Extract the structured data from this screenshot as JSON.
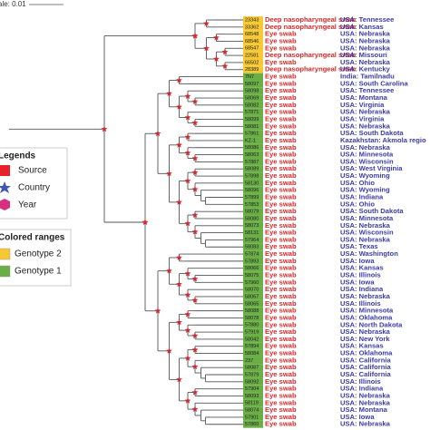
{
  "scale": "ale: 0.01",
  "legend": {
    "title": "Legends",
    "items": [
      "Source",
      "Country",
      "Year"
    ]
  },
  "colored_ranges": {
    "title": "Colored ranges",
    "items": [
      {
        "label": "Genotype 2",
        "color": "#f6c834"
      },
      {
        "label": "Genotype 1",
        "color": "#6aae46"
      }
    ]
  },
  "leaves": [
    {
      "id": "23343",
      "source": "Deep nasopharyngeal swab",
      "country": "USA: Tennessee",
      "color": "#f6c834"
    },
    {
      "id": "33362",
      "source": "Deep nasopharyngeal swab",
      "country": "USA: Kansas",
      "color": "#f6c834"
    },
    {
      "id": "68548",
      "source": "Eye swab",
      "country": "USA: Nebraska",
      "color": "#f6c834"
    },
    {
      "id": "68546",
      "source": "Eye swab",
      "country": "USA: Nebraska",
      "color": "#f6c834"
    },
    {
      "id": "68547",
      "source": "Eye swab",
      "country": "USA: Nebraska",
      "color": "#f6c834"
    },
    {
      "id": "22581",
      "source": "Deep nasopharyngeal swab",
      "country": "USA: Missouri",
      "color": "#f6c834"
    },
    {
      "id": "66502",
      "source": "Eye swab",
      "country": "USA: Nebraska",
      "color": "#f6c834"
    },
    {
      "id": "28389",
      "source": "Deep nasopharyngeal swab",
      "country": "USA: Kentucky",
      "color": "#f6c834"
    },
    {
      "id": "7N7",
      "source": "Eye swab",
      "country": "India: Tamilnadu",
      "color": "#6aae46"
    },
    {
      "id": "58097",
      "source": "Eye swab",
      "country": "USA: South Carolina",
      "color": "#6aae46"
    },
    {
      "id": "58098",
      "source": "Eye swab",
      "country": "USA: Tennessee",
      "color": "#6aae46"
    },
    {
      "id": "58069",
      "source": "Eye swab",
      "country": "USA: Montana",
      "color": "#6aae46"
    },
    {
      "id": "58082",
      "source": "Eye swab",
      "country": "USA: Virginia",
      "color": "#6aae46"
    },
    {
      "id": "57871",
      "source": "Eye swab",
      "country": "USA: Nebraska",
      "color": "#6aae46"
    },
    {
      "id": "58099",
      "source": "Eye swab",
      "country": "USA: Virginia",
      "color": "#6aae46"
    },
    {
      "id": "58081",
      "source": "Eye swab",
      "country": "USA: Nebraska",
      "color": "#6aae46"
    },
    {
      "id": "57861",
      "source": "Eye swab",
      "country": "USA: South Dakota",
      "color": "#6aae46"
    },
    {
      "id": "KZ-1",
      "source": "Eye swab",
      "country": "Kazakhstan: Akmola regio",
      "color": "#6aae46"
    },
    {
      "id": "58086",
      "source": "Eye swab",
      "country": "USA: Nebraska",
      "color": "#6aae46"
    },
    {
      "id": "58063",
      "source": "Eye swab",
      "country": "USA: Minnesota",
      "color": "#6aae46"
    },
    {
      "id": "57887",
      "source": "Eye swab",
      "country": "USA: Wisconsin",
      "color": "#6aae46"
    },
    {
      "id": "58089",
      "source": "Eye swab",
      "country": "USA: West Virginia",
      "color": "#6aae46"
    },
    {
      "id": "57898",
      "source": "Eye swab",
      "country": "USA: Wyoming",
      "color": "#6aae46"
    },
    {
      "id": "58130",
      "source": "Eye swab",
      "country": "USA: Ohio",
      "color": "#6aae46"
    },
    {
      "id": "58096",
      "source": "Eye swab",
      "country": "USA: Wyoming",
      "color": "#6aae46"
    },
    {
      "id": "57899",
      "source": "Eye swab",
      "country": "USA: Indiana",
      "color": "#6aae46"
    },
    {
      "id": "57853",
      "source": "Eye swab",
      "country": "USA: Ohio",
      "color": "#6aae46"
    },
    {
      "id": "58079",
      "source": "Eye swab",
      "country": "USA: South Dakota",
      "color": "#6aae46"
    },
    {
      "id": "58080",
      "source": "Eye swab",
      "country": "USA: Minnesota",
      "color": "#6aae46"
    },
    {
      "id": "58073",
      "source": "Eye swab",
      "country": "USA: Nebraska",
      "color": "#6aae46"
    },
    {
      "id": "58131",
      "source": "Eye swab",
      "country": "USA: Wisconsin",
      "color": "#6aae46"
    },
    {
      "id": "57964",
      "source": "Eye swab",
      "country": "USA: Nebraska",
      "color": "#6aae46"
    },
    {
      "id": "58083",
      "source": "Eye swab",
      "country": "USA: Texas",
      "color": "#6aae46"
    },
    {
      "id": "57874",
      "source": "Eye swab",
      "country": "USA: Washington",
      "color": "#6aae46"
    },
    {
      "id": "57893",
      "source": "Eye swab",
      "country": "USA: Iowa",
      "color": "#6aae46"
    },
    {
      "id": "58066",
      "source": "Eye swab",
      "country": "USA: Kansas",
      "color": "#6aae46"
    },
    {
      "id": "58075",
      "source": "Eye swab",
      "country": "USA: Illinois",
      "color": "#6aae46"
    },
    {
      "id": "57960",
      "source": "Eye swab",
      "country": "USA: Iowa",
      "color": "#6aae46"
    },
    {
      "id": "58070",
      "source": "Eye swab",
      "country": "USA: Indiana",
      "color": "#6aae46"
    },
    {
      "id": "58067",
      "source": "Eye swab",
      "country": "USA: Nebraska",
      "color": "#6aae46"
    },
    {
      "id": "58065",
      "source": "Eye swab",
      "country": "USA: Illinois",
      "color": "#6aae46"
    },
    {
      "id": "58088",
      "source": "Eye swab",
      "country": "USA: Minnesota",
      "color": "#6aae46"
    },
    {
      "id": "58078",
      "source": "Eye swab",
      "country": "USA: Oklahoma",
      "color": "#6aae46"
    },
    {
      "id": "57880",
      "source": "Eye swab",
      "country": "USA: North Dakota",
      "color": "#6aae46"
    },
    {
      "id": "57919",
      "source": "Eye swab",
      "country": "USA: Nebraska",
      "color": "#6aae46"
    },
    {
      "id": "58042",
      "source": "Eye swab",
      "country": "USA: New York",
      "color": "#6aae46"
    },
    {
      "id": "57894",
      "source": "Eye swab",
      "country": "USA: Kansas",
      "color": "#6aae46"
    },
    {
      "id": "58084",
      "source": "Eye swab",
      "country": "USA: Oklahoma",
      "color": "#6aae46"
    },
    {
      "id": "237",
      "source": "Eye swab",
      "country": "USA: California",
      "color": "#6aae46"
    },
    {
      "id": "58087",
      "source": "Eye swab",
      "country": "USA: California",
      "color": "#6aae46"
    },
    {
      "id": "57879",
      "source": "Eye swab",
      "country": "USA: California",
      "color": "#6aae46"
    },
    {
      "id": "58092",
      "source": "Eye swab",
      "country": "USA: Illinois",
      "color": "#6aae46"
    },
    {
      "id": "57904",
      "source": "Eye swab",
      "country": "USA: Indiana",
      "color": "#6aae46"
    },
    {
      "id": "58093",
      "source": "Eye swab",
      "country": "USA: Nebraska",
      "color": "#6aae46"
    },
    {
      "id": "58119",
      "source": "Eye swab",
      "country": "USA: Nebraska",
      "color": "#6aae46"
    },
    {
      "id": "58074",
      "source": "Eye swab",
      "country": "USA: Montana",
      "color": "#6aae46"
    },
    {
      "id": "57901",
      "source": "Eye swab",
      "country": "USA: Iowa",
      "color": "#6aae46"
    },
    {
      "id": "57860",
      "source": "Eye swab",
      "country": "USA: Nebraska",
      "color": "#6aae46"
    }
  ]
}
